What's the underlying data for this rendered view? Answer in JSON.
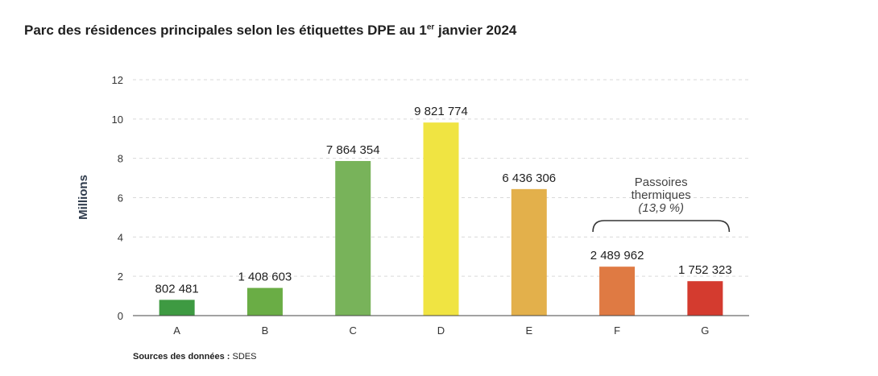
{
  "title": {
    "main": "Parc des résidences principales selon les étiquettes DPE au 1",
    "sup": "er",
    "end": " janvier 2024"
  },
  "source": {
    "label": "Sources des données :",
    "value": " SDES"
  },
  "chart_data": {
    "type": "bar",
    "categories": [
      "A",
      "B",
      "C",
      "D",
      "E",
      "F",
      "G"
    ],
    "values": [
      0.802481,
      1.408603,
      7.864354,
      9.821774,
      6.436306,
      2.489962,
      1.752323
    ],
    "value_labels": [
      "802 481",
      "1 408 603",
      "7 864 354",
      "9 821 774",
      "6 436 306",
      "2 489 962",
      "1 752 323"
    ],
    "colors": [
      "#3e9a42",
      "#6aad45",
      "#78b35a",
      "#f0e442",
      "#e3b04b",
      "#df7a43",
      "#d43b2f"
    ],
    "ylabel": "Millions",
    "xlabel": "",
    "ylim": [
      0,
      12
    ],
    "yticks": [
      0,
      2,
      4,
      6,
      8,
      10,
      12
    ],
    "grid": true,
    "annotation": {
      "lines": [
        "Passoires",
        "thermiques",
        "(13,9 %)"
      ],
      "categories": [
        "F",
        "G"
      ]
    }
  }
}
